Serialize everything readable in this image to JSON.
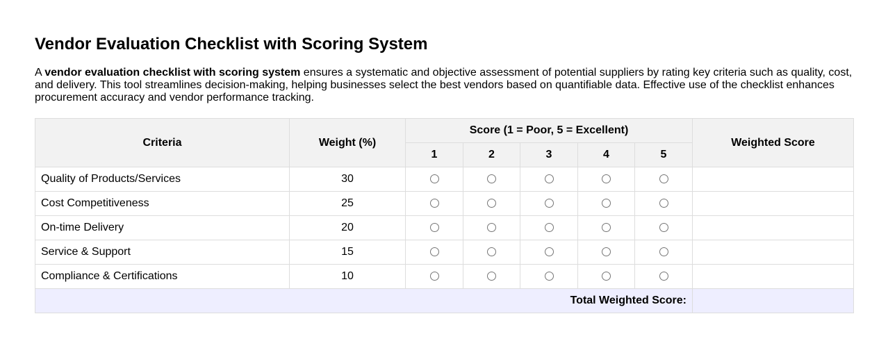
{
  "title": "Vendor Evaluation Checklist with Scoring System",
  "intro": {
    "lead": "A ",
    "bold": "vendor evaluation checklist with scoring system",
    "rest": " ensures a systematic and objective assessment of potential suppliers by rating key criteria such as quality, cost, and delivery. This tool streamlines decision-making, helping businesses select the best vendors based on quantifiable data. Effective use of the checklist enhances procurement accuracy and vendor performance tracking."
  },
  "table": {
    "headers": {
      "criteria": "Criteria",
      "weight": "Weight (%)",
      "score": "Score (1 = Poor, 5 = Excellent)",
      "weighted": "Weighted Score",
      "score_levels": [
        "1",
        "2",
        "3",
        "4",
        "5"
      ]
    },
    "rows": [
      {
        "criteria": "Quality of Products/Services",
        "weight": "30",
        "weighted_score": ""
      },
      {
        "criteria": "Cost Competitiveness",
        "weight": "25",
        "weighted_score": ""
      },
      {
        "criteria": "On-time Delivery",
        "weight": "20",
        "weighted_score": ""
      },
      {
        "criteria": "Service & Support",
        "weight": "15",
        "weighted_score": ""
      },
      {
        "criteria": "Compliance & Certifications",
        "weight": "10",
        "weighted_score": ""
      }
    ],
    "total_label": "Total Weighted Score:",
    "total_value": ""
  }
}
